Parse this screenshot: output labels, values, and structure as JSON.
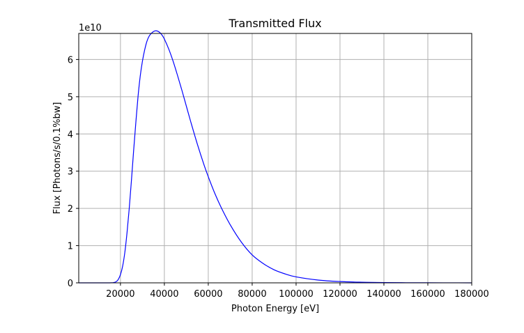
{
  "chart_data": {
    "type": "line",
    "title": "Transmitted Flux",
    "xlabel": "Photon Energy [eV]",
    "ylabel": "Flux [Photons/s/0.1%bw]",
    "y_offset_label": "1e10",
    "xlim": [
      1000,
      180000
    ],
    "ylim": [
      0,
      6.7
    ],
    "x_ticks": [
      20000,
      40000,
      60000,
      80000,
      100000,
      120000,
      140000,
      160000,
      180000
    ],
    "x_tick_labels": [
      "20000",
      "40000",
      "60000",
      "80000",
      "100000",
      "120000",
      "140000",
      "160000",
      "180000"
    ],
    "y_ticks": [
      0,
      1,
      2,
      3,
      4,
      5,
      6
    ],
    "y_tick_labels": [
      "0",
      "1",
      "2",
      "3",
      "4",
      "5",
      "6"
    ],
    "grid": true,
    "series": [
      {
        "color": "#0000ff",
        "x": [
          1000,
          10000,
          16000,
          18000,
          19000,
          20000,
          21000,
          22000,
          23000,
          24000,
          25000,
          26000,
          27000,
          28000,
          29000,
          30000,
          31000,
          32000,
          33000,
          34000,
          35000,
          36000,
          37000,
          38000,
          39000,
          40000,
          42000,
          44000,
          46000,
          48000,
          50000,
          52000,
          55000,
          58000,
          60000,
          63000,
          66000,
          70000,
          75000,
          80000,
          85000,
          90000,
          95000,
          100000,
          110000,
          120000,
          130000,
          140000,
          150000,
          160000,
          170000,
          180000
        ],
        "y": [
          0,
          0,
          0.002,
          0.03,
          0.09,
          0.22,
          0.45,
          0.82,
          1.35,
          2.0,
          2.75,
          3.55,
          4.3,
          5.0,
          5.55,
          5.95,
          6.25,
          6.48,
          6.62,
          6.7,
          6.75,
          6.77,
          6.76,
          6.72,
          6.65,
          6.55,
          6.28,
          5.95,
          5.57,
          5.17,
          4.75,
          4.33,
          3.73,
          3.18,
          2.85,
          2.4,
          2.01,
          1.56,
          1.1,
          0.75,
          0.52,
          0.35,
          0.24,
          0.16,
          0.075,
          0.035,
          0.017,
          0.008,
          0.004,
          0.002,
          0.001,
          0.0005
        ]
      }
    ]
  }
}
